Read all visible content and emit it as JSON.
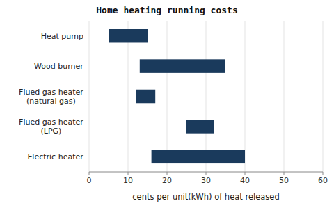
{
  "chart_data": {
    "type": "bar",
    "orientation": "horizontal",
    "title": "Home heating running costs",
    "xlabel": "cents per unit(kWh) of heat released",
    "categories": [
      "Electric heater",
      "Flued gas heater\n(LPG)",
      "Flued gas heater\n(natural gas)",
      "Wood burner",
      "Heat pump"
    ],
    "low": [
      16,
      25,
      12,
      13,
      5
    ],
    "high": [
      40,
      32,
      17,
      35,
      15
    ],
    "color": "#1a3a5c",
    "xlim": [
      0,
      60
    ],
    "xticks": [
      0,
      10,
      20,
      30,
      40,
      50,
      60
    ],
    "grid": true
  }
}
